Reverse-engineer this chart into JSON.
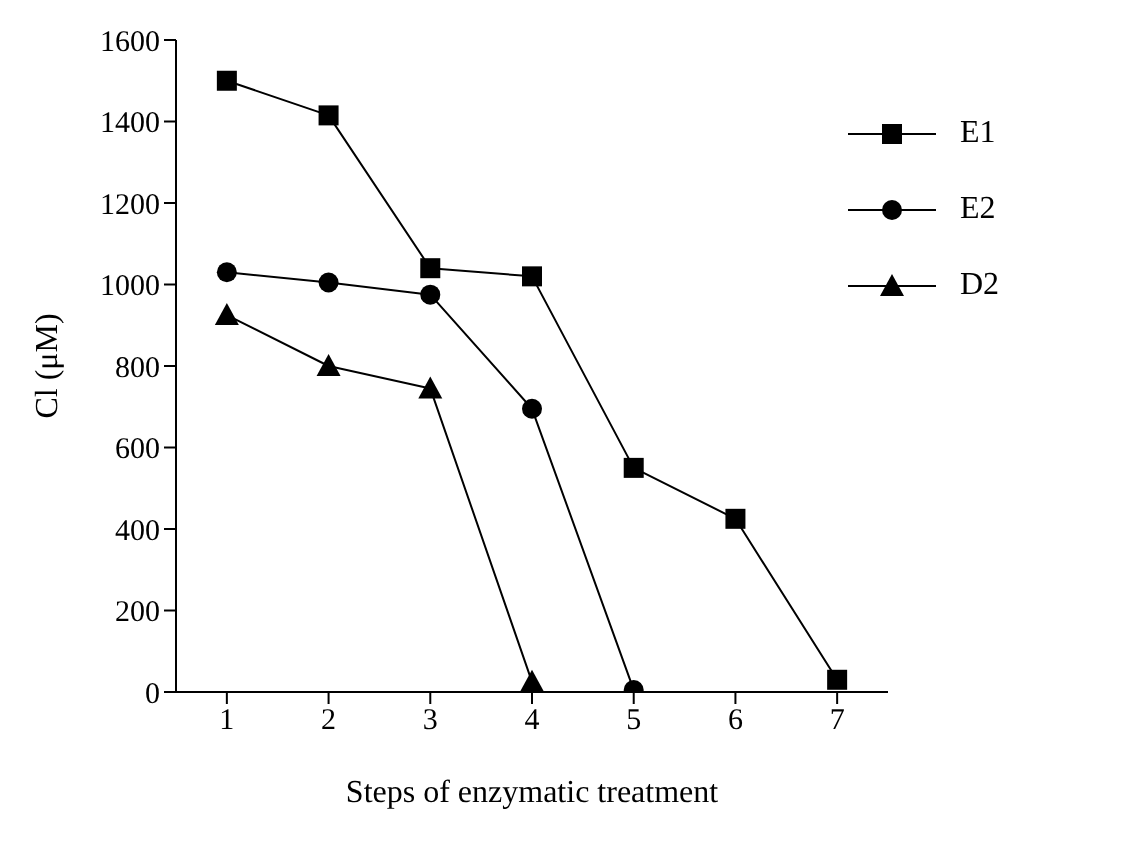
{
  "chart_data": {
    "type": "line",
    "xlabel": "Steps of enzymatic treatment",
    "ylabel": "Cl (μM)",
    "series": [
      {
        "name": "E1",
        "color": "#000000",
        "marker": "square",
        "x": [
          1,
          2,
          3,
          4,
          5,
          6,
          7
        ],
        "values": [
          1500,
          1415,
          1040,
          1020,
          550,
          425,
          30
        ]
      },
      {
        "name": "E2",
        "color": "#000000",
        "marker": "circle",
        "x": [
          1,
          2,
          3,
          4,
          5
        ],
        "values": [
          1030,
          1005,
          975,
          695,
          5
        ]
      },
      {
        "name": "D2",
        "color": "#000000",
        "marker": "triangle",
        "x": [
          1,
          2,
          3,
          4
        ],
        "values": [
          925,
          800,
          745,
          25
        ]
      }
    ],
    "xlim": [
      0.5,
      7.5
    ],
    "xticks": [
      1,
      2,
      3,
      4,
      5,
      6,
      7
    ],
    "ylim": [
      0,
      1600
    ],
    "yticks": [
      0,
      200,
      400,
      600,
      800,
      1000,
      1200,
      1400,
      1600
    ],
    "grid": false,
    "legend": "top right",
    "line_style": "solid"
  }
}
